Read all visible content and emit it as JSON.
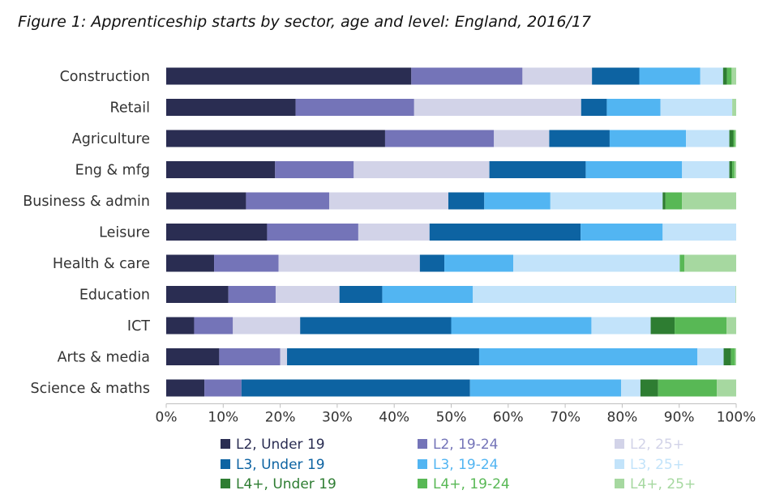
{
  "chart_data": {
    "type": "bar",
    "orientation": "horizontal",
    "stacked": true,
    "title": "Figure 1: Apprenticeship starts by sector, age and level: England, 2016/17",
    "xlim": [
      0,
      100
    ],
    "x_ticks": [
      "0%",
      "10%",
      "20%",
      "30%",
      "40%",
      "50%",
      "60%",
      "70%",
      "80%",
      "90%",
      "100%"
    ],
    "legend_position": "bottom",
    "grid": false,
    "categories": [
      "Construction",
      "Retail",
      "Agriculture",
      "Eng & mfg",
      "Business & admin",
      "Leisure",
      "Health & care",
      "Education",
      "ICT",
      "Arts & media",
      "Science & maths"
    ],
    "series": [
      {
        "name": "L2, Under 19",
        "color": "#2a2d52",
        "values": [
          43,
          22.7,
          38.4,
          19.1,
          14,
          17.7,
          8.4,
          10.9,
          4.9,
          9.3,
          6.7
        ]
      },
      {
        "name": "L2, 19-24",
        "color": "#7474b8",
        "values": [
          19.5,
          20.8,
          19.1,
          13.8,
          14.6,
          16,
          11.3,
          8.3,
          6.8,
          10.7,
          6.5
        ]
      },
      {
        "name": "L2, 25+",
        "color": "#d2d3e8",
        "values": [
          12.2,
          29.3,
          9.7,
          23.8,
          20.9,
          12.5,
          24.8,
          11.2,
          11.8,
          1.2,
          0
        ]
      },
      {
        "name": "L3, Under 19",
        "color": "#0d63a2",
        "values": [
          8.3,
          4.5,
          10.6,
          16.9,
          6.3,
          26.5,
          4.3,
          7.5,
          26.5,
          33.7,
          40.1
        ]
      },
      {
        "name": "L3, 19-24",
        "color": "#52b5f2",
        "values": [
          10.7,
          9.4,
          13.4,
          16.9,
          11.6,
          14.4,
          12.1,
          15.9,
          24.6,
          38.3,
          26.5
        ]
      },
      {
        "name": "L3, 25+",
        "color": "#c2e3fa",
        "values": [
          4,
          12.6,
          7.6,
          8.3,
          19.7,
          12.9,
          29.2,
          46.1,
          10.4,
          4.6,
          3.4
        ]
      },
      {
        "name": "L4+, Under 19",
        "color": "#2e7d32",
        "values": [
          0.7,
          0,
          0.7,
          0.5,
          0.5,
          0,
          0,
          0,
          4.2,
          1.3,
          3.1
        ]
      },
      {
        "name": "L4+, 19-24",
        "color": "#58b855",
        "values": [
          0.8,
          0,
          0.3,
          0.4,
          2.9,
          0,
          0.8,
          0,
          9.1,
          0.7,
          10.3
        ]
      },
      {
        "name": "L4+, 25+",
        "color": "#a6d8a0",
        "values": [
          0.8,
          0.7,
          0.2,
          0.3,
          9.5,
          0,
          9.1,
          0.1,
          1.7,
          0.2,
          3.4
        ]
      }
    ]
  }
}
